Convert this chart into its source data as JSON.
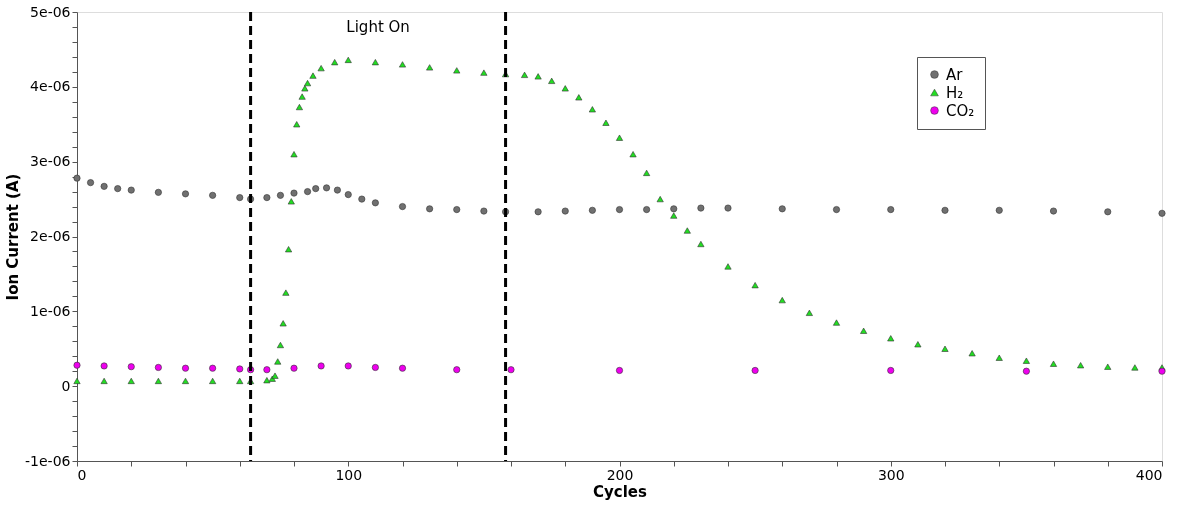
{
  "chart_data": {
    "type": "scatter",
    "xlabel": "Cycles",
    "ylabel": "Ion Current (A)",
    "xlim": [
      0,
      400
    ],
    "xticks": [
      0,
      {
        "value": 20,
        "label": null
      },
      {
        "value": 40,
        "label": null
      },
      {
        "value": 60,
        "label": null
      },
      {
        "value": 80,
        "label": null
      },
      100,
      {
        "value": 120,
        "label": null
      },
      {
        "value": 140,
        "label": null
      },
      {
        "value": 160,
        "label": null
      },
      {
        "value": 180,
        "label": null
      },
      200,
      {
        "value": 220,
        "label": null
      },
      {
        "value": 240,
        "label": null
      },
      {
        "value": 260,
        "label": null
      },
      {
        "value": 280,
        "label": null
      },
      300,
      {
        "value": 320,
        "label": null
      },
      {
        "value": 340,
        "label": null
      },
      {
        "value": 360,
        "label": null
      },
      {
        "value": 380,
        "label": null
      },
      400
    ],
    "ylim": [
      -1e-06,
      5e-06
    ],
    "yticks": [
      {
        "value": -1e-06,
        "label": "-1e-06"
      },
      {
        "value": -8e-07,
        "label": null
      },
      {
        "value": -6e-07,
        "label": null
      },
      {
        "value": -4e-07,
        "label": null
      },
      {
        "value": -2e-07,
        "label": null
      },
      0,
      {
        "value": 2e-07,
        "label": null
      },
      {
        "value": 4e-07,
        "label": null
      },
      {
        "value": 6e-07,
        "label": null
      },
      {
        "value": 8e-07,
        "label": null
      },
      {
        "value": 1e-06,
        "label": "1e-06"
      },
      {
        "value": 1.2e-06,
        "label": null
      },
      {
        "value": 1.4e-06,
        "label": null
      },
      {
        "value": 1.6e-06,
        "label": null
      },
      {
        "value": 1.8e-06,
        "label": null
      },
      {
        "value": 2e-06,
        "label": "2e-06"
      },
      {
        "value": 2.2e-06,
        "label": null
      },
      {
        "value": 2.4e-06,
        "label": null
      },
      {
        "value": 2.6e-06,
        "label": null
      },
      {
        "value": 2.8e-06,
        "label": null
      },
      {
        "value": 3e-06,
        "label": "3e-06"
      },
      {
        "value": 3.2e-06,
        "label": null
      },
      {
        "value": 3.4e-06,
        "label": null
      },
      {
        "value": 3.6e-06,
        "label": null
      },
      {
        "value": 3.8e-06,
        "label": null
      },
      {
        "value": 4e-06,
        "label": "4e-06"
      },
      {
        "value": 4.2e-06,
        "label": null
      },
      {
        "value": 4.4e-06,
        "label": null
      },
      {
        "value": 4.6e-06,
        "label": null
      },
      {
        "value": 4.8e-06,
        "label": null
      },
      {
        "value": 5e-06,
        "label": "5e-06"
      }
    ],
    "grid": false,
    "legend": "top right",
    "ref_lines": [
      {
        "axis": "x",
        "value": 64,
        "line_style": "dashed",
        "color": "#000000"
      },
      {
        "axis": "x",
        "value": 158,
        "line_style": "dashed",
        "color": "#000000"
      }
    ],
    "annotations": [
      "Light On"
    ],
    "series": [
      {
        "name": "Ar",
        "color": "#707070",
        "marker": "circle",
        "x": [
          0,
          5,
          10,
          15,
          20,
          30,
          40,
          50,
          60,
          64,
          70,
          75,
          80,
          85,
          88,
          92,
          96,
          100,
          105,
          110,
          120,
          130,
          140,
          150,
          158,
          170,
          180,
          190,
          200,
          210,
          220,
          230,
          240,
          260,
          280,
          300,
          320,
          340,
          360,
          380,
          400
        ],
        "values": [
          2.78e-06,
          2.72e-06,
          2.67e-06,
          2.64e-06,
          2.62e-06,
          2.59e-06,
          2.57e-06,
          2.55e-06,
          2.52e-06,
          2.5e-06,
          2.52e-06,
          2.55e-06,
          2.58e-06,
          2.6e-06,
          2.64e-06,
          2.65e-06,
          2.62e-06,
          2.56e-06,
          2.5e-06,
          2.45e-06,
          2.4e-06,
          2.37e-06,
          2.36e-06,
          2.34e-06,
          2.33e-06,
          2.33e-06,
          2.34e-06,
          2.35e-06,
          2.36e-06,
          2.36e-06,
          2.37e-06,
          2.38e-06,
          2.38e-06,
          2.37e-06,
          2.36e-06,
          2.36e-06,
          2.35e-06,
          2.35e-06,
          2.34e-06,
          2.33e-06,
          2.31e-06
        ]
      },
      {
        "name": "H₂",
        "color": "#22dd22",
        "marker": "triangle",
        "x": [
          0,
          10,
          20,
          30,
          40,
          50,
          60,
          64,
          70,
          72,
          73,
          74,
          75,
          76,
          77,
          78,
          79,
          80,
          81,
          82,
          83,
          84,
          85,
          87,
          90,
          95,
          100,
          110,
          120,
          130,
          140,
          150,
          158,
          165,
          170,
          175,
          180,
          185,
          190,
          195,
          200,
          205,
          210,
          215,
          220,
          225,
          230,
          240,
          250,
          260,
          270,
          280,
          290,
          300,
          310,
          320,
          330,
          340,
          350,
          360,
          370,
          380,
          390,
          400
        ],
        "values": [
          7e-08,
          7e-08,
          7e-08,
          7e-08,
          7e-08,
          7e-08,
          7e-08,
          7e-08,
          8e-08,
          1e-07,
          1.4e-07,
          3.3e-07,
          5.5e-07,
          8.4e-07,
          1.25e-06,
          1.83e-06,
          2.47e-06,
          3.1e-06,
          3.5e-06,
          3.73e-06,
          3.87e-06,
          3.98e-06,
          4.05e-06,
          4.15e-06,
          4.25e-06,
          4.33e-06,
          4.36e-06,
          4.33e-06,
          4.3e-06,
          4.26e-06,
          4.22e-06,
          4.19e-06,
          4.17e-06,
          4.16e-06,
          4.14e-06,
          4.08e-06,
          3.98e-06,
          3.86e-06,
          3.7e-06,
          3.52e-06,
          3.32e-06,
          3.1e-06,
          2.85e-06,
          2.5e-06,
          2.28e-06,
          2.08e-06,
          1.9e-06,
          1.6e-06,
          1.35e-06,
          1.15e-06,
          9.8e-07,
          8.5e-07,
          7.4e-07,
          6.4e-07,
          5.6e-07,
          5e-07,
          4.4e-07,
          3.8e-07,
          3.4e-07,
          3e-07,
          2.8e-07,
          2.6e-07,
          2.5e-07,
          2.5e-07
        ]
      },
      {
        "name": "CO₂",
        "color": "#ee00ee",
        "marker": "circle",
        "x": [
          0,
          10,
          20,
          30,
          40,
          50,
          60,
          64,
          70,
          80,
          90,
          100,
          110,
          120,
          140,
          160,
          200,
          250,
          300,
          350,
          400
        ],
        "values": [
          2.8e-07,
          2.7e-07,
          2.6e-07,
          2.5e-07,
          2.4e-07,
          2.4e-07,
          2.3e-07,
          2.2e-07,
          2.2e-07,
          2.4e-07,
          2.7e-07,
          2.7e-07,
          2.5e-07,
          2.4e-07,
          2.2e-07,
          2.2e-07,
          2.1e-07,
          2.1e-07,
          2.1e-07,
          2e-07,
          2e-07
        ]
      }
    ]
  }
}
